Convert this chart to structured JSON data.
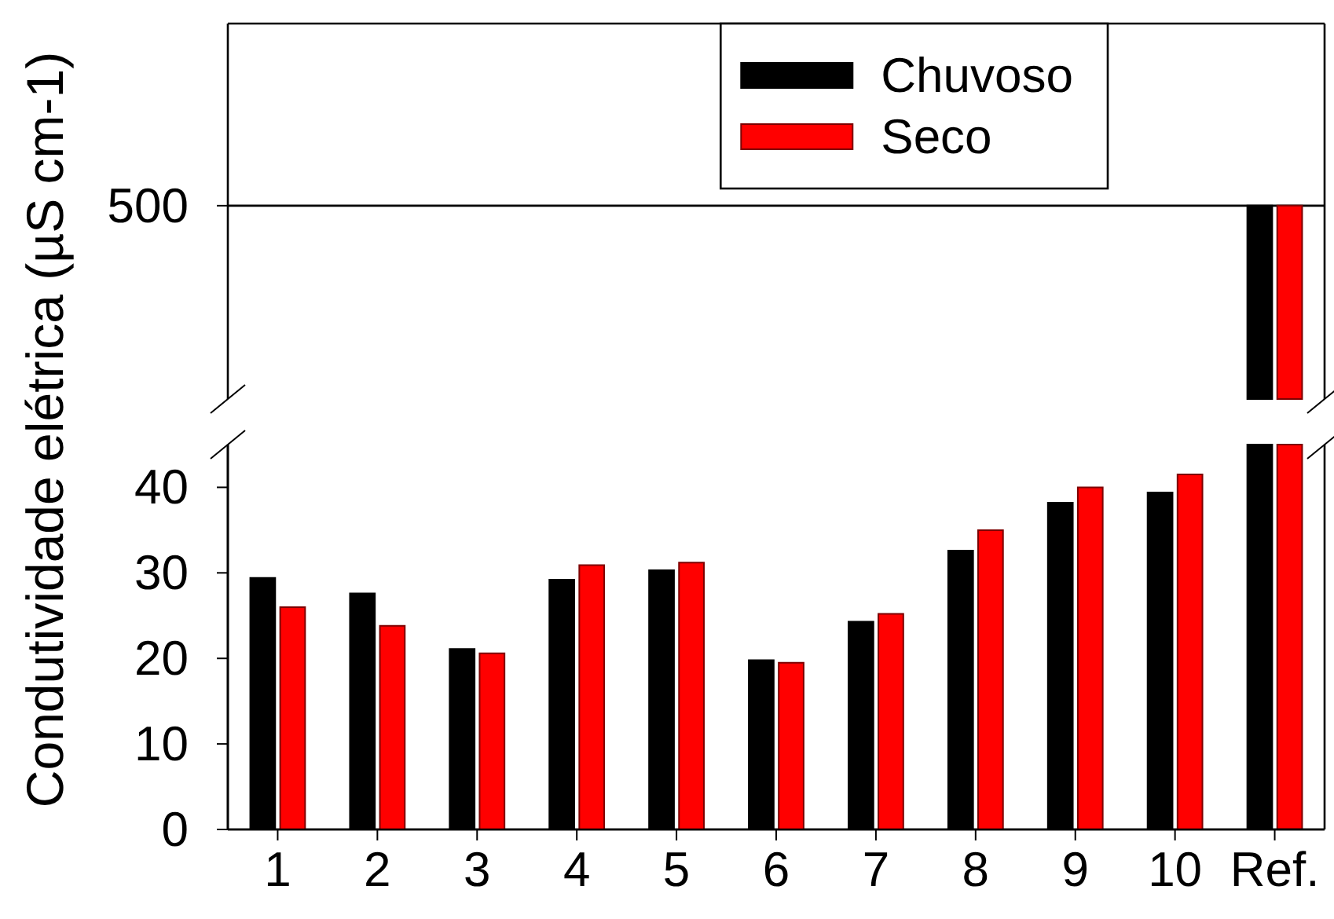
{
  "chart_data": [
    {
      "type": "bar",
      "categories": [
        "1",
        "2",
        "3",
        "4",
        "5",
        "6",
        "7",
        "8",
        "9",
        "10",
        "Ref."
      ],
      "series": [
        {
          "name": "Chuvoso",
          "color": "#000000",
          "values": [
            null,
            null,
            null,
            null,
            null,
            null,
            null,
            null,
            null,
            null,
            500
          ]
        },
        {
          "name": "Seco",
          "color": "#ff0000",
          "values": [
            null,
            null,
            null,
            null,
            null,
            null,
            null,
            null,
            null,
            null,
            500
          ]
        }
      ],
      "ylabel": "Condutividade elétrica (µS cm-1)",
      "ylim": [
        0,
        971
      ],
      "yticks": [
        500
      ],
      "grid": "y",
      "legend": "top right"
    },
    {
      "type": "bar",
      "categories": [
        null,
        null,
        null,
        null,
        null,
        null,
        null,
        null,
        null,
        null,
        null
      ],
      "series": [
        {
          "color": "#000000",
          "values": [
            29.4,
            27.6,
            21.1,
            29.2,
            30.3,
            19.8,
            24.3,
            32.6,
            38.2,
            39.4,
            null
          ]
        },
        {
          "color": "#ff0000",
          "values": [
            26.0,
            23.8,
            20.6,
            30.9,
            31.2,
            19.5,
            25.2,
            35.0,
            40.0,
            41.5,
            null
          ]
        }
      ],
      "ylim": [
        0,
        45
      ],
      "yticks": [
        0,
        10,
        20,
        30,
        40
      ],
      "tick_labels": "y"
    }
  ]
}
